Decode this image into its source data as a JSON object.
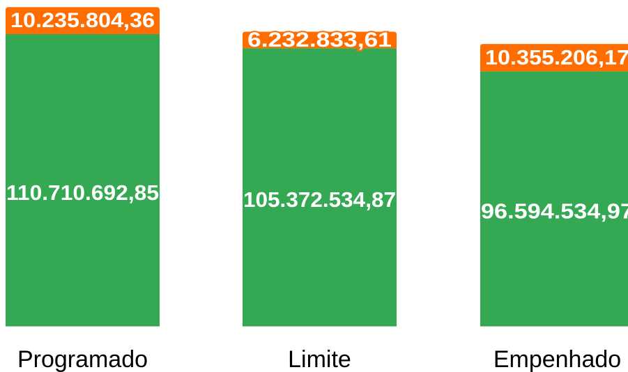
{
  "chart_data": {
    "type": "bar",
    "stacked": true,
    "categories": [
      "Programado",
      "Limite",
      "Empenhado"
    ],
    "series": [
      {
        "color": "#34a853",
        "values": [
          110710692.85,
          105372534.87,
          96594534.97
        ],
        "labels": [
          "110.710.692,85",
          "105.372.534,87",
          "96.594.534,97"
        ]
      },
      {
        "color": "#ff6d01",
        "values": [
          10235804.36,
          6232833.61,
          10355206.17
        ],
        "labels": [
          "10.235.804,36",
          "6.232.833,61",
          "10.355.206,17"
        ]
      }
    ],
    "ylim": [
      0,
      121000000
    ],
    "grid": false,
    "legend": "none"
  }
}
